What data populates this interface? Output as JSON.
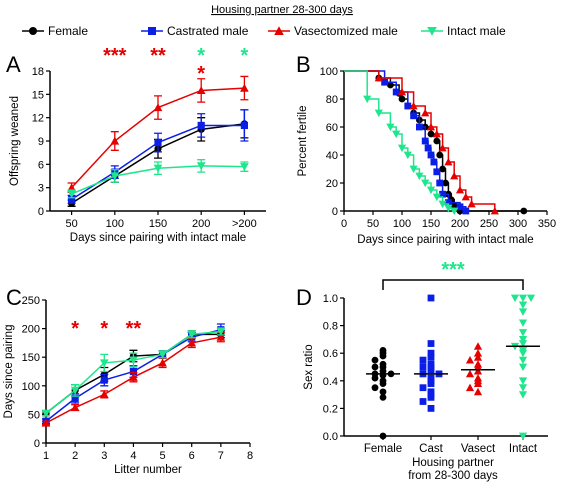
{
  "legend": {
    "title": "Housing partner 28-300 days",
    "entries": [
      {
        "label": "Female",
        "color": "#000000",
        "marker": "circle"
      },
      {
        "label": "Castrated male",
        "color": "#0a1ee6",
        "marker": "square"
      },
      {
        "label": "Vasectomized male",
        "color": "#e60000",
        "marker": "triangle-up"
      },
      {
        "label": "Intact male",
        "color": "#1ee68c",
        "marker": "triangle-down"
      }
    ]
  },
  "colors": {
    "female": "#000000",
    "castrated": "#0a1ee6",
    "vasectomized": "#e60000",
    "intact": "#1ee68c"
  },
  "chart_data": [
    {
      "panel": "A",
      "type": "line",
      "xlabel": "Days since pairing with intact male",
      "ylabel": "Offspring weaned",
      "categories": [
        "50",
        "100",
        "150",
        "200",
        ">200"
      ],
      "ylim": [
        0,
        18
      ],
      "yticks": [
        0,
        3,
        6,
        9,
        12,
        15,
        18
      ],
      "series": [
        {
          "name": "Female",
          "values": [
            1.0,
            4.5,
            8.0,
            10.5,
            11.2
          ],
          "errors": [
            0.4,
            0.8,
            1.2,
            1.5,
            1.8
          ]
        },
        {
          "name": "Castrated male",
          "values": [
            1.5,
            5.0,
            8.8,
            11.0,
            11.0
          ],
          "errors": [
            0.5,
            0.8,
            1.2,
            1.5,
            2.0
          ]
        },
        {
          "name": "Vasectomized male",
          "values": [
            3.0,
            9.0,
            13.3,
            15.5,
            15.8
          ],
          "errors": [
            0.6,
            1.2,
            1.5,
            1.5,
            1.5
          ]
        },
        {
          "name": "Intact male",
          "values": [
            2.2,
            4.5,
            5.5,
            5.8,
            5.7
          ],
          "errors": [
            0.5,
            0.8,
            0.8,
            0.8,
            0.6
          ]
        }
      ],
      "annotations": [
        {
          "x": "100",
          "rows": [
            {
              "text": "***",
              "color": "#e60000"
            }
          ]
        },
        {
          "x": "150",
          "rows": [
            {
              "text": "**",
              "color": "#e60000"
            }
          ]
        },
        {
          "x": "200",
          "rows": [
            {
              "text": "*",
              "color": "#1ee68c"
            },
            {
              "text": "*",
              "color": "#e60000"
            }
          ]
        },
        {
          "x": ">200",
          "rows": [
            {
              "text": "*",
              "color": "#1ee68c"
            }
          ]
        }
      ]
    },
    {
      "panel": "B",
      "type": "line",
      "subtype": "survival-step",
      "xlabel": "Days since pairing with intact male",
      "ylabel": "Percent fertile",
      "xlim": [
        0,
        350
      ],
      "xticks": [
        0,
        50,
        100,
        150,
        200,
        250,
        300,
        350
      ],
      "ylim": [
        0,
        100
      ],
      "yticks": [
        0,
        20,
        40,
        60,
        80,
        100
      ],
      "series": [
        {
          "name": "Female",
          "x": [
            0,
            60,
            80,
            95,
            100,
            110,
            120,
            130,
            140,
            150,
            160,
            165,
            170,
            175,
            180,
            185,
            190,
            200,
            310
          ],
          "values": [
            100,
            95,
            90,
            84,
            80,
            75,
            70,
            65,
            60,
            55,
            50,
            40,
            30,
            20,
            12,
            8,
            4,
            0,
            0
          ]
        },
        {
          "name": "Castrated male",
          "x": [
            0,
            70,
            90,
            110,
            120,
            130,
            140,
            145,
            150,
            155,
            160,
            165,
            170,
            180,
            200,
            210
          ],
          "values": [
            100,
            92,
            85,
            75,
            68,
            60,
            50,
            45,
            40,
            35,
            28,
            20,
            12,
            6,
            3,
            0
          ]
        },
        {
          "name": "Vasectomized male",
          "x": [
            0,
            60,
            100,
            120,
            140,
            150,
            160,
            170,
            180,
            190,
            200,
            210,
            220,
            260
          ],
          "values": [
            100,
            95,
            85,
            75,
            70,
            60,
            55,
            45,
            35,
            25,
            15,
            10,
            5,
            0
          ]
        },
        {
          "name": "Intact male",
          "x": [
            0,
            40,
            60,
            80,
            90,
            100,
            110,
            120,
            130,
            140,
            150,
            160,
            170,
            180,
            190
          ],
          "values": [
            100,
            80,
            70,
            60,
            55,
            45,
            40,
            30,
            25,
            20,
            15,
            10,
            5,
            2,
            0
          ]
        }
      ]
    },
    {
      "panel": "C",
      "type": "line",
      "xlabel": "Litter number",
      "ylabel": "Days since pairing",
      "xlim": [
        1,
        8
      ],
      "xticks": [
        1,
        2,
        3,
        4,
        5,
        6,
        7,
        8
      ],
      "ylim": [
        0,
        250
      ],
      "yticks": [
        0,
        50,
        100,
        150,
        200,
        250
      ],
      "series": [
        {
          "name": "Female",
          "x": [
            1,
            2,
            3,
            4,
            5,
            6,
            7
          ],
          "values": [
            52,
            92,
            120,
            152,
            155,
            190,
            190
          ],
          "errors": [
            4,
            10,
            12,
            10,
            6,
            6,
            6
          ]
        },
        {
          "name": "Castrated male",
          "x": [
            1,
            2,
            3,
            4,
            5,
            6,
            7
          ],
          "values": [
            38,
            78,
            110,
            125,
            155,
            185,
            198
          ],
          "errors": [
            4,
            8,
            10,
            10,
            6,
            8,
            10
          ]
        },
        {
          "name": "Vasectomized male",
          "x": [
            1,
            2,
            3,
            4,
            5,
            6,
            7
          ],
          "values": [
            35,
            62,
            85,
            115,
            140,
            175,
            185
          ],
          "errors": [
            3,
            5,
            6,
            8,
            8,
            8,
            8
          ]
        },
        {
          "name": "Intact male",
          "x": [
            1,
            2,
            3,
            4,
            5,
            6,
            7
          ],
          "values": [
            52,
            92,
            140,
            145,
            155,
            190,
            195
          ],
          "errors": [
            4,
            10,
            15,
            12,
            6,
            6,
            6
          ]
        }
      ],
      "annotations": [
        {
          "x": 2,
          "text": "*",
          "color": "#e60000"
        },
        {
          "x": 3,
          "text": "*",
          "color": "#e60000"
        },
        {
          "x": 4,
          "text": "**",
          "color": "#e60000"
        }
      ]
    },
    {
      "panel": "D",
      "type": "scatter",
      "xlabel": "Housing partner\nfrom 28-300 days",
      "xlabel_lines": [
        "Housing partner",
        "from 28-300 days"
      ],
      "ylabel": "Sex ratio",
      "categories": [
        "Female",
        "Cast",
        "Vasect",
        "Intact"
      ],
      "ylim": [
        0,
        1
      ],
      "yticks": [
        0.0,
        0.2,
        0.4,
        0.6,
        0.8,
        1.0
      ],
      "series": [
        {
          "name": "Female",
          "values": [
            0.62,
            0.6,
            0.58,
            0.55,
            0.52,
            0.5,
            0.5,
            0.47,
            0.45,
            0.45,
            0.44,
            0.42,
            0.4,
            0.38,
            0.35,
            0.32,
            0.28,
            0.0
          ],
          "mean": 0.45
        },
        {
          "name": "Castrated male",
          "values": [
            1.0,
            0.67,
            0.6,
            0.57,
            0.55,
            0.52,
            0.5,
            0.5,
            0.48,
            0.45,
            0.45,
            0.42,
            0.4,
            0.38,
            0.35,
            0.32,
            0.3,
            0.28,
            0.25,
            0.2
          ],
          "mean": 0.45
        },
        {
          "name": "Vasectomized male",
          "values": [
            0.65,
            0.6,
            0.57,
            0.55,
            0.52,
            0.5,
            0.47,
            0.45,
            0.42,
            0.4,
            0.38,
            0.35,
            0.32
          ],
          "mean": 0.48
        },
        {
          "name": "Intact male",
          "values": [
            1.0,
            1.0,
            1.0,
            0.95,
            0.9,
            0.82,
            0.75,
            0.7,
            0.67,
            0.65,
            0.62,
            0.6,
            0.55,
            0.5,
            0.4,
            0.35,
            0.3,
            0.0
          ],
          "mean": 0.65
        }
      ],
      "annotation": {
        "text": "***",
        "color": "#1ee68c",
        "from": "Female",
        "to": "Intact"
      }
    }
  ]
}
